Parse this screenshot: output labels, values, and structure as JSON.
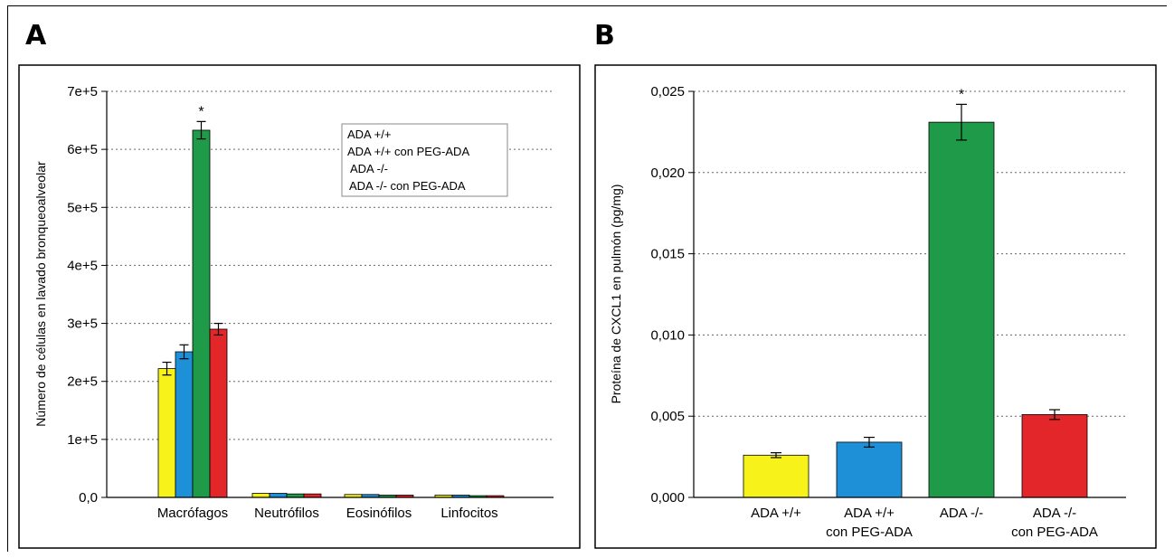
{
  "panels": {
    "a_letter": "A",
    "b_letter": "B"
  },
  "colors": {
    "yellow": "#f7f21a",
    "blue": "#1e90d8",
    "green": "#1e9a48",
    "red": "#e3262a"
  },
  "chart_data": [
    {
      "type": "bar",
      "panel": "A",
      "title": "",
      "xlabel": "",
      "ylabel": "Número de células en lavado bronqueoalveolar",
      "ylim": [
        0,
        700000
      ],
      "yticks": [
        0,
        100000,
        200000,
        300000,
        400000,
        500000,
        600000,
        700000
      ],
      "ytick_labels": [
        "0,0",
        "1e+5",
        "2e+5",
        "3e+5",
        "4e+5",
        "5e+5",
        "6e+5",
        "7e+5"
      ],
      "grid": "horizontal dotted",
      "legend_position": "top-right",
      "categories": [
        "Macrófagos",
        "Neutrófilos",
        "Eosinófilos",
        "Linfocitos"
      ],
      "series": [
        {
          "name": "ADA +/+",
          "color": "#f7f21a",
          "values": [
            222000,
            7000,
            5000,
            4000
          ],
          "errors": [
            11000,
            0,
            0,
            0
          ]
        },
        {
          "name": "ADA +/+ con PEG-ADA",
          "color": "#1e90d8",
          "values": [
            251000,
            7000,
            5000,
            4000
          ],
          "errors": [
            12000,
            0,
            0,
            0
          ]
        },
        {
          "name": "ADA -/-",
          "color": "#1e9a48",
          "values": [
            633000,
            6000,
            4000,
            3000
          ],
          "errors": [
            15000,
            0,
            0,
            0
          ]
        },
        {
          "name": "ADA -/- con PEG-ADA",
          "color": "#e3262a",
          "values": [
            290000,
            6000,
            4000,
            3000
          ],
          "errors": [
            10000,
            0,
            0,
            0
          ]
        }
      ],
      "annotations": [
        {
          "text": "*",
          "category": "Macrófagos",
          "series": "ADA -/-"
        }
      ]
    },
    {
      "type": "bar",
      "panel": "B",
      "title": "",
      "xlabel": "",
      "ylabel": "Proteína de CXCL1 en pulmón (pg/mg)",
      "ylim": [
        0,
        0.025
      ],
      "yticks": [
        0,
        0.005,
        0.01,
        0.015,
        0.02,
        0.025
      ],
      "ytick_labels": [
        "0,000",
        "0,005",
        "0,010",
        "0,015",
        "0,020",
        "0,025"
      ],
      "grid": "horizontal dotted",
      "categories": [
        {
          "line1": "ADA +/+",
          "line2": ""
        },
        {
          "line1": "ADA +/+",
          "line2": "con PEG-ADA"
        },
        {
          "line1": "ADA -/-",
          "line2": ""
        },
        {
          "line1": "ADA -/-",
          "line2": "con PEG-ADA"
        }
      ],
      "values": [
        0.0026,
        0.0034,
        0.0231,
        0.0051
      ],
      "errors": [
        0.00015,
        0.0003,
        0.0011,
        0.0003
      ],
      "bar_colors": [
        "#f7f21a",
        "#1e90d8",
        "#1e9a48",
        "#e3262a"
      ],
      "annotations": [
        {
          "text": "*",
          "category_index": 2
        }
      ]
    }
  ]
}
